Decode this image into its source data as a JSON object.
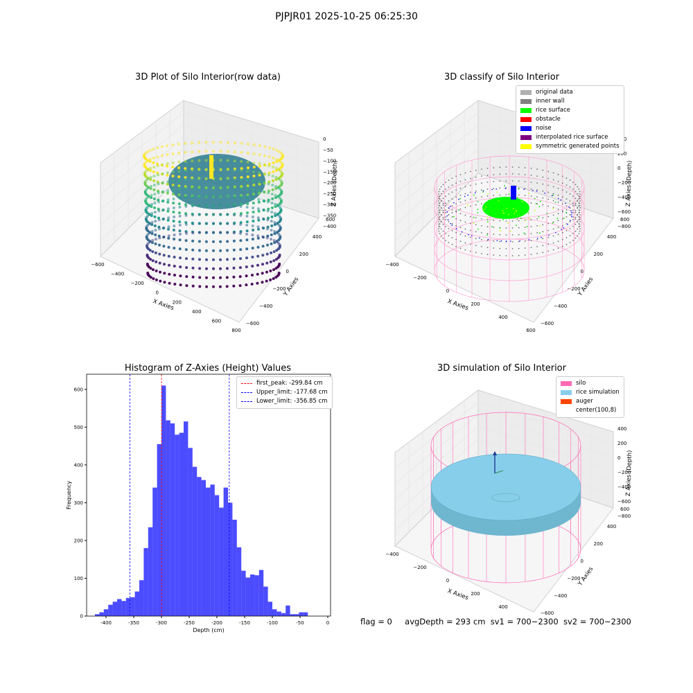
{
  "suptitle": "PJPJR01 2025-10-25 06:25:30",
  "panels": {
    "raw": {
      "title": "3D Plot of Silo Interior(row data)",
      "xlabel": "X Axies",
      "ylabel": "Y Axies",
      "zlabel": "Z Axies (Depth)",
      "xticks": [
        "−600",
        "−400",
        "−200",
        "0",
        "200",
        "400",
        "600",
        "800"
      ],
      "yticks": [
        "600",
        "400",
        "200",
        "0",
        "−200",
        "−400",
        "−600"
      ],
      "zticks": [
        "0",
        "−50",
        "−100",
        "−150",
        "−200",
        "−250",
        "−300",
        "−350",
        "−400"
      ]
    },
    "classify": {
      "title": "3D classify of Silo Interior",
      "xlabel": "X Axies",
      "ylabel": "Y Axies",
      "zlabel": "Z Axies (Depth)",
      "xticks": [
        "−400",
        "−200",
        "0",
        "200",
        "400",
        "600"
      ],
      "yticks": [
        "600",
        "400",
        "200",
        "0",
        "−200",
        "−400",
        "−600"
      ],
      "zticks": [
        "400",
        "200",
        "0",
        "−200",
        "−400",
        "−600",
        "−800"
      ],
      "legend": [
        {
          "label": "original data",
          "color": "#b0b0b0"
        },
        {
          "label": "inner wall",
          "color": "#808080"
        },
        {
          "label": "rice surface",
          "color": "#00ff00"
        },
        {
          "label": "obstacle",
          "color": "#ff0000"
        },
        {
          "label": "noise",
          "color": "#0000ff"
        },
        {
          "label": "interpolated rice surface",
          "color": "#800080"
        },
        {
          "label": "symmetric generated points",
          "color": "#ffff00"
        }
      ]
    },
    "simulation": {
      "title": "3D simulation of Silo Interior",
      "xlabel": "X Axies",
      "ylabel": "Y Axies",
      "zlabel": "Z Axies (Depth)",
      "xticks": [
        "−400",
        "−200",
        "0",
        "200",
        "400",
        "600"
      ],
      "yticks": [
        "600",
        "400",
        "200",
        "0",
        "−200",
        "−400",
        "−600"
      ],
      "zticks": [
        "400",
        "200",
        "0",
        "−200",
        "−400",
        "−600",
        "−800"
      ],
      "legend": [
        {
          "label": "silo",
          "color": "#ff69b4"
        },
        {
          "label": "rice simulation",
          "color": "#87ceeb"
        },
        {
          "label": "auger",
          "color": "#ff4500"
        },
        {
          "label": "center(100,8)",
          "color": ""
        }
      ]
    }
  },
  "footer": {
    "flag": "flag = 0",
    "avg": "avgDepth = 293 cm",
    "sv1": "sv1 = 700~2300",
    "sv2": "sv2 = 700~2300"
  },
  "chart_data": {
    "type": "bar",
    "title": "Histogram of Z-Axies (Height) Values",
    "xlabel": "Depth (cm)",
    "ylabel": "Frequency",
    "xlim": [
      -435,
      5
    ],
    "ylim": [
      0,
      640
    ],
    "xticks": [
      -400,
      -350,
      -300,
      -250,
      -200,
      -150,
      -100,
      -50,
      0
    ],
    "yticks": [
      0,
      100,
      200,
      300,
      400,
      500,
      600
    ],
    "bar_color": "#0000ff",
    "bin_start": -420,
    "bin_width": 8,
    "values": [
      5,
      10,
      18,
      30,
      38,
      45,
      40,
      48,
      50,
      65,
      95,
      180,
      235,
      340,
      455,
      610,
      518,
      510,
      480,
      485,
      515,
      445,
      395,
      368,
      360,
      340,
      348,
      320,
      287,
      340,
      300,
      255,
      182,
      120,
      102,
      110,
      108,
      122,
      78,
      38,
      18,
      12,
      8,
      28,
      5,
      5,
      10,
      10
    ],
    "lines": [
      {
        "label": "first_peak: -299.84 cm",
        "x": -299.84,
        "color": "#ff0000"
      },
      {
        "label": "Upper_limit: -177.68 cm",
        "x": -177.68,
        "color": "#0000ff"
      },
      {
        "label": "Lower_limit: -356.85 cm",
        "x": -356.85,
        "color": "#0000ff"
      }
    ]
  }
}
